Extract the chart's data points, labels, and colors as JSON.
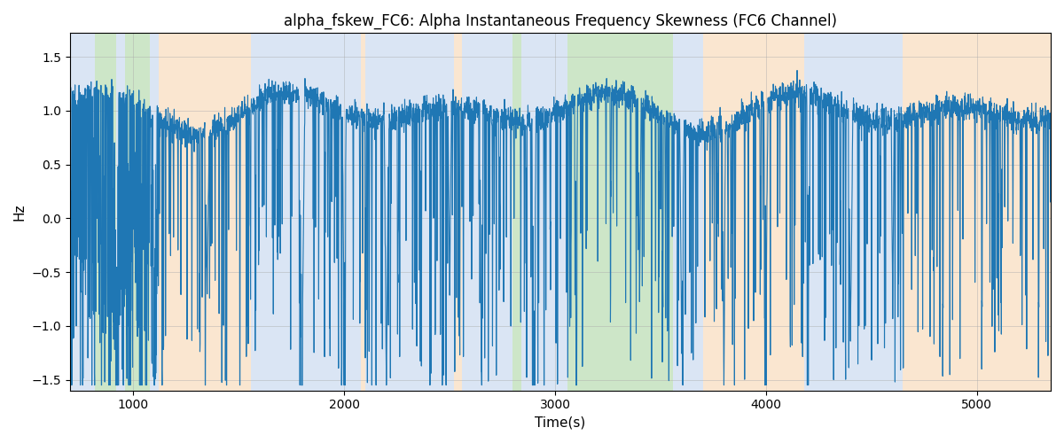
{
  "title": "alpha_fskew_FC6: Alpha Instantaneous Frequency Skewness (FC6 Channel)",
  "xlabel": "Time(s)",
  "ylabel": "Hz",
  "ylim": [
    -1.6,
    1.72
  ],
  "xlim": [
    700,
    5350
  ],
  "line_color": "#1f77b4",
  "line_width": 0.8,
  "background_color": "#ffffff",
  "grid_color": "#aaaaaa",
  "grid_alpha": 0.5,
  "title_fontsize": 12,
  "axis_fontsize": 11,
  "segments": [
    {
      "start": 700,
      "end": 820,
      "color": "#aec6e8",
      "alpha": 0.45
    },
    {
      "start": 820,
      "end": 920,
      "color": "#90c987",
      "alpha": 0.45
    },
    {
      "start": 920,
      "end": 960,
      "color": "#aec6e8",
      "alpha": 0.45
    },
    {
      "start": 960,
      "end": 1080,
      "color": "#90c987",
      "alpha": 0.45
    },
    {
      "start": 1080,
      "end": 1120,
      "color": "#aec6e8",
      "alpha": 0.45
    },
    {
      "start": 1120,
      "end": 1560,
      "color": "#f5c897",
      "alpha": 0.45
    },
    {
      "start": 1560,
      "end": 2080,
      "color": "#aec6e8",
      "alpha": 0.45
    },
    {
      "start": 2080,
      "end": 2100,
      "color": "#f5c897",
      "alpha": 0.45
    },
    {
      "start": 2100,
      "end": 2520,
      "color": "#aec6e8",
      "alpha": 0.45
    },
    {
      "start": 2520,
      "end": 2560,
      "color": "#f5c897",
      "alpha": 0.45
    },
    {
      "start": 2560,
      "end": 2800,
      "color": "#aec6e8",
      "alpha": 0.45
    },
    {
      "start": 2800,
      "end": 2840,
      "color": "#90c987",
      "alpha": 0.45
    },
    {
      "start": 2840,
      "end": 3060,
      "color": "#aec6e8",
      "alpha": 0.45
    },
    {
      "start": 3060,
      "end": 3100,
      "color": "#90c987",
      "alpha": 0.45
    },
    {
      "start": 3100,
      "end": 3560,
      "color": "#90c987",
      "alpha": 0.45
    },
    {
      "start": 3560,
      "end": 3700,
      "color": "#aec6e8",
      "alpha": 0.45
    },
    {
      "start": 3700,
      "end": 4180,
      "color": "#f5c897",
      "alpha": 0.45
    },
    {
      "start": 4180,
      "end": 4220,
      "color": "#aec6e8",
      "alpha": 0.45
    },
    {
      "start": 4220,
      "end": 4650,
      "color": "#aec6e8",
      "alpha": 0.45
    },
    {
      "start": 4650,
      "end": 5350,
      "color": "#f5c897",
      "alpha": 0.45
    }
  ],
  "xticks": [
    1000,
    2000,
    3000,
    4000,
    5000
  ],
  "yticks": [
    -1.5,
    -1.0,
    -0.5,
    0.0,
    0.5,
    1.0,
    1.5
  ],
  "t_start": 700,
  "t_end": 5350,
  "n_points": 4650
}
